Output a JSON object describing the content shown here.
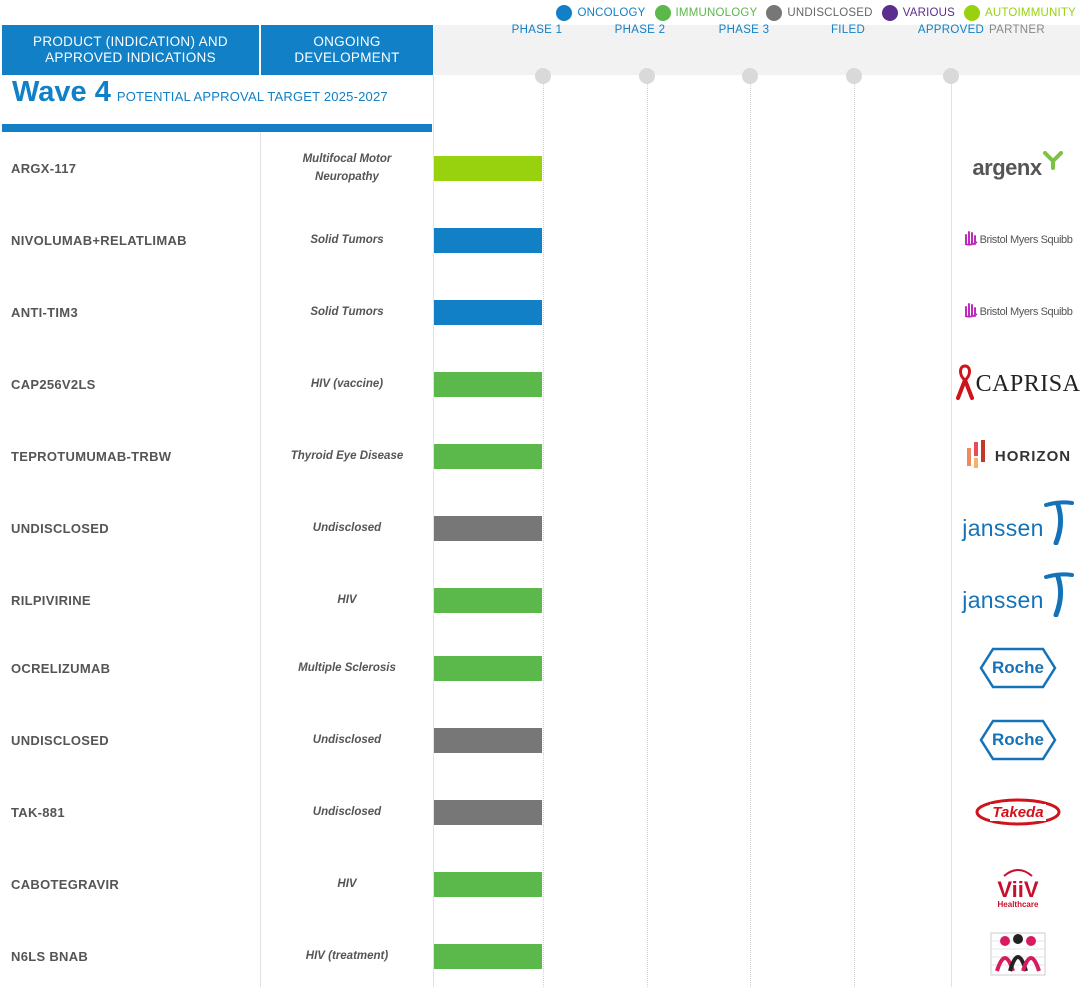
{
  "legend": [
    {
      "label": "ONCOLOGY",
      "color": "#1180c6"
    },
    {
      "label": "IMMUNOLOGY",
      "color": "#5bb84a"
    },
    {
      "label": "UNDISCLOSED",
      "color": "#777777"
    },
    {
      "label": "VARIOUS",
      "color": "#5b2d8e"
    },
    {
      "label": "AUTOIMMUNITY",
      "color": "#98d20f"
    }
  ],
  "header": {
    "product_label": "PRODUCT (INDICATION) AND APPROVED INDICATIONS",
    "development_label": "ONGOING DEVELOPMENT",
    "phases": [
      "PHASE 1",
      "PHASE 2",
      "PHASE 3",
      "FILED",
      "APPROVED"
    ],
    "partner_label": "PARTNER"
  },
  "wave": {
    "title": "Wave 4",
    "subtitle": "POTENTIAL APPROVAL TARGET 2025-2027"
  },
  "chart_data": {
    "type": "bar",
    "orientation": "horizontal",
    "stages": [
      "PHASE 1",
      "PHASE 2",
      "PHASE 3",
      "FILED",
      "APPROVED"
    ],
    "rows": [
      {
        "product": "ARGX-117",
        "development": "Multifocal Motor Neuropathy",
        "category": "AUTOIMMUNITY",
        "stage_reached": "PHASE 1",
        "partner": "argenx",
        "partner_icon": "argenx-logo-icon"
      },
      {
        "product": "NIVOLUMAB+RELATLIMAB",
        "development": "Solid Tumors",
        "category": "ONCOLOGY",
        "stage_reached": "PHASE 1",
        "partner": "Bristol Myers Squibb",
        "partner_icon": "bms-logo-icon"
      },
      {
        "product": "ANTI-TIM3",
        "development": "Solid Tumors",
        "category": "ONCOLOGY",
        "stage_reached": "PHASE 1",
        "partner": "Bristol Myers Squibb",
        "partner_icon": "bms-logo-icon"
      },
      {
        "product": "CAP256V2LS",
        "development": "HIV (vaccine)",
        "category": "IMMUNOLOGY",
        "stage_reached": "PHASE 1",
        "partner": "CAPRISA",
        "partner_icon": "caprisa-ribbon-icon"
      },
      {
        "product": "TEPROTUMUMAB-TRBW",
        "development": "Thyroid Eye Disease",
        "category": "IMMUNOLOGY",
        "stage_reached": "PHASE 1",
        "partner": "HORIZON",
        "partner_icon": "horizon-logo-icon"
      },
      {
        "product": "UNDISCLOSED",
        "development": "Undisclosed",
        "category": "UNDISCLOSED",
        "stage_reached": "PHASE 1",
        "partner": "janssen",
        "partner_icon": "janssen-swoosh-icon"
      },
      {
        "product": "RILPIVIRINE",
        "development": "HIV",
        "category": "IMMUNOLOGY",
        "stage_reached": "PHASE 1",
        "partner": "janssen",
        "partner_icon": "janssen-swoosh-icon"
      },
      {
        "product": "OCRELIZUMAB",
        "development": "Multiple Sclerosis",
        "category": "IMMUNOLOGY",
        "stage_reached": "PHASE 1",
        "partner": "Roche",
        "partner_icon": "roche-hexagon-icon"
      },
      {
        "product": "UNDISCLOSED",
        "development": "Undisclosed",
        "category": "UNDISCLOSED",
        "stage_reached": "PHASE 1",
        "partner": "Roche",
        "partner_icon": "roche-hexagon-icon"
      },
      {
        "product": "TAK-881",
        "development": "Undisclosed",
        "category": "UNDISCLOSED",
        "stage_reached": "PHASE 1",
        "partner": "Takeda",
        "partner_icon": "takeda-logo-icon"
      },
      {
        "product": "CABOTEGRAVIR",
        "development": "HIV",
        "category": "IMMUNOLOGY",
        "stage_reached": "PHASE 1",
        "partner": "ViiV",
        "partner_sub": "Healthcare",
        "partner_icon": "viiv-logo-icon"
      },
      {
        "product": "N6LS BNAB",
        "development": "HIV (treatment)",
        "category": "IMMUNOLOGY",
        "stage_reached": "PHASE 1",
        "partner": "",
        "partner_icon": "people-group-icon"
      }
    ]
  }
}
